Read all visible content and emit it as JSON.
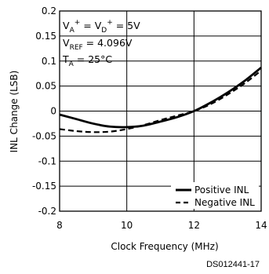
{
  "chart_data": {
    "type": "line",
    "xlabel": "Clock Frequency (MHz)",
    "ylabel": "INL Change (LSB)",
    "xlim": [
      8,
      14
    ],
    "ylim": [
      -0.2,
      0.2
    ],
    "x_ticks": [
      "8",
      "10",
      "12",
      "14"
    ],
    "y_ticks": [
      "0.2",
      "0.15",
      "0.1",
      "0.05",
      "0",
      "-0.05",
      "-0.1",
      "-0.15",
      "-0.2"
    ],
    "grid": true,
    "annotation": {
      "line1": {
        "v1": "V",
        "sub1": "A",
        "sup1": "+",
        "eq1": " = V",
        "sub2": "D",
        "sup2": "+",
        "val": " = 5V"
      },
      "line2": {
        "v": "V",
        "sub": "REF",
        "val": " = 4.096V"
      },
      "line3": {
        "v": "T",
        "sub": "A",
        "val": " = 25°C"
      }
    },
    "legend_position": "bottom-right",
    "series": [
      {
        "name": "Positive INL",
        "style": "solid",
        "x": [
          8.0,
          8.5,
          9.0,
          9.5,
          10.0,
          10.5,
          11.0,
          11.5,
          12.0,
          12.5,
          13.0,
          13.5,
          14.0
        ],
        "y": [
          -0.007,
          -0.016,
          -0.025,
          -0.031,
          -0.032,
          -0.029,
          -0.021,
          -0.012,
          0.0,
          0.017,
          0.037,
          0.06,
          0.087
        ]
      },
      {
        "name": "Negative INL",
        "style": "dashed",
        "x": [
          8.0,
          8.5,
          9.0,
          9.5,
          10.0,
          10.5,
          11.0,
          11.5,
          12.0,
          12.5,
          13.0,
          13.5,
          14.0
        ],
        "y": [
          -0.036,
          -0.04,
          -0.042,
          -0.041,
          -0.036,
          -0.028,
          -0.018,
          -0.009,
          0.0,
          0.014,
          0.033,
          0.055,
          0.081
        ]
      }
    ]
  },
  "source_label": "DS012441-17"
}
